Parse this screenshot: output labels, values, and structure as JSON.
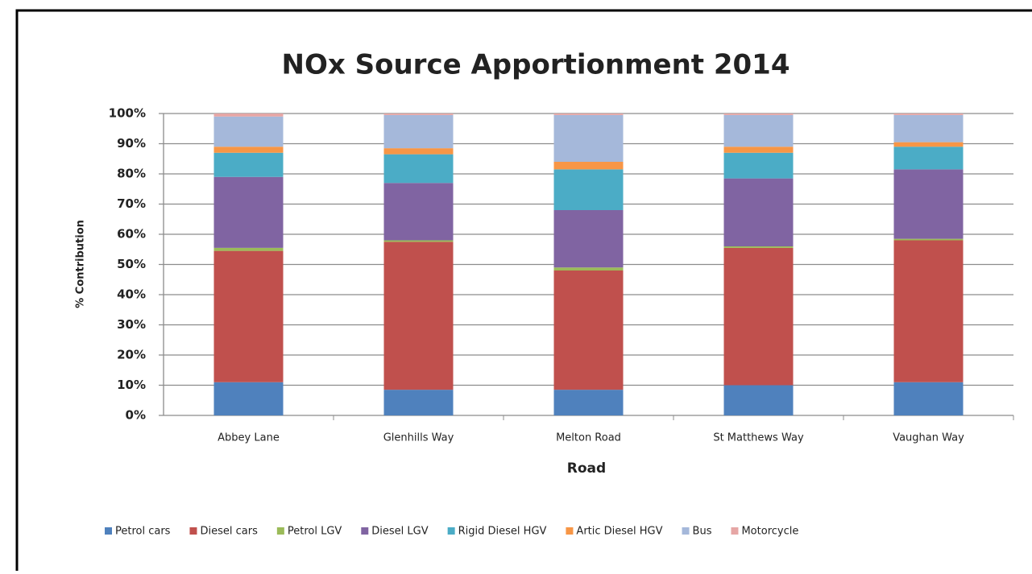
{
  "chart_data": {
    "type": "stacked-bar",
    "title": "NOx Source Apportionment 2014",
    "x_label": "Road",
    "y_label": "% Contribution",
    "categories": [
      "Abbey Lane",
      "Glenhills Way",
      "Melton Road",
      "St Matthews Way",
      "Vaughan Way"
    ],
    "series": [
      {
        "name": "Petrol cars",
        "color": "#4f81bd",
        "values": [
          11,
          8.5,
          8.5,
          10,
          11
        ]
      },
      {
        "name": "Diesel cars",
        "color": "#c0504d",
        "values": [
          43.5,
          49,
          39.5,
          45.5,
          47
        ]
      },
      {
        "name": "Petrol LGV",
        "color": "#9bbb59",
        "values": [
          1,
          0.5,
          1,
          0.5,
          0.5
        ]
      },
      {
        "name": "Diesel LGV",
        "color": "#8064a2",
        "values": [
          23.5,
          19,
          19,
          22.5,
          23
        ]
      },
      {
        "name": "Rigid Diesel HGV",
        "color": "#4bacc6",
        "values": [
          8,
          9.5,
          13.5,
          8.5,
          7.5
        ]
      },
      {
        "name": "Artic Diesel HGV",
        "color": "#f79646",
        "values": [
          2,
          2,
          2.5,
          2,
          1.5
        ]
      },
      {
        "name": "Bus",
        "color": "#a5b8da",
        "values": [
          10,
          11,
          15.5,
          10.5,
          9
        ]
      },
      {
        "name": "Motorcycle",
        "color": "#e6a6a5",
        "values": [
          1,
          0.5,
          0.5,
          0.5,
          0.5
        ]
      }
    ],
    "ylim": [
      0,
      100
    ],
    "yticks": [
      {
        "value": 0,
        "label": "0%"
      },
      {
        "value": 10,
        "label": "10%"
      },
      {
        "value": 20,
        "label": "20%"
      },
      {
        "value": 30,
        "label": "30%"
      },
      {
        "value": 40,
        "label": "40%"
      },
      {
        "value": 50,
        "label": "50%"
      },
      {
        "value": 60,
        "label": "60%"
      },
      {
        "value": 70,
        "label": "70%"
      },
      {
        "value": 80,
        "label": "80%"
      },
      {
        "value": 90,
        "label": "90%"
      },
      {
        "value": 100,
        "label": "100%"
      }
    ],
    "grid": true,
    "legend": "bottom"
  }
}
